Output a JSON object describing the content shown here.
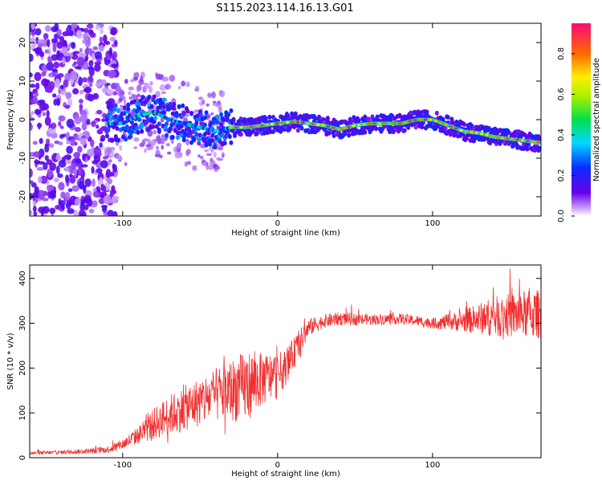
{
  "title": "S115.2023.114.16.13.G01",
  "chart_data": [
    {
      "type": "heatmap",
      "xlabel": "Height of straight line (km)",
      "ylabel": "Frequency (Hz)",
      "xlim": [
        -160,
        170
      ],
      "ylim": [
        -25,
        25
      ],
      "x_ticks": [
        -100,
        0,
        100
      ],
      "x_tick_labels": [
        "-100",
        "0",
        "100"
      ],
      "y_ticks": [
        -20,
        -10,
        0,
        10,
        20
      ],
      "y_tick_labels": [
        "-20",
        "-10",
        "0",
        "10",
        "20"
      ],
      "colorbar": {
        "label": "Normalized spectral amplitude",
        "range": [
          0.0,
          0.95
        ],
        "ticks": [
          0.0,
          0.2,
          0.4,
          0.6,
          0.8
        ],
        "tick_labels": [
          "0.0",
          "0.2",
          "0.4",
          "0.6",
          "0.8"
        ]
      },
      "ridge_frequency": {
        "x": [
          -110,
          -100,
          -90,
          -80,
          -70,
          -60,
          -50,
          -40,
          -30,
          -20,
          -10,
          0,
          10,
          20,
          30,
          40,
          50,
          60,
          70,
          80,
          90,
          100,
          110,
          120,
          130,
          140,
          150,
          160,
          170
        ],
        "y": [
          -1,
          -1,
          1,
          2,
          0,
          -1,
          -2,
          -3,
          -2,
          -2,
          -1.5,
          -1,
          -0.5,
          -1,
          -1.5,
          -2.5,
          -1.5,
          -1,
          -1,
          -1,
          0,
          0,
          -1.5,
          -3,
          -3.5,
          -4.5,
          -5,
          -5.5,
          -6
        ]
      }
    },
    {
      "type": "line",
      "xlabel": "Height of straight line (km)",
      "ylabel": "SNR (10 * v/v)",
      "xlim": [
        -160,
        170
      ],
      "ylim": [
        0,
        430
      ],
      "x_ticks": [
        -100,
        0,
        100
      ],
      "x_tick_labels": [
        "-100",
        "0",
        "100"
      ],
      "y_ticks": [
        0,
        100,
        200,
        300,
        400
      ],
      "y_tick_labels": [
        "0",
        "100",
        "200",
        "300",
        "400"
      ],
      "series": [
        {
          "color": "#f03030",
          "x": [
            -160,
            -140,
            -120,
            -110,
            -100,
            -90,
            -80,
            -70,
            -60,
            -50,
            -40,
            -30,
            -20,
            -10,
            0,
            5,
            10,
            15,
            20,
            30,
            40,
            60,
            80,
            100,
            120,
            140,
            160,
            170
          ],
          "y": [
            10,
            12,
            15,
            18,
            30,
            50,
            75,
            95,
            110,
            125,
            140,
            150,
            160,
            175,
            185,
            200,
            230,
            260,
            290,
            305,
            310,
            308,
            310,
            300,
            305,
            315,
            320,
            320
          ],
          "noise_amplitude": [
            4,
            4,
            6,
            8,
            12,
            20,
            35,
            45,
            50,
            55,
            60,
            70,
            80,
            60,
            50,
            40,
            35,
            30,
            20,
            15,
            15,
            12,
            12,
            12,
            25,
            45,
            55,
            55
          ]
        }
      ]
    }
  ]
}
